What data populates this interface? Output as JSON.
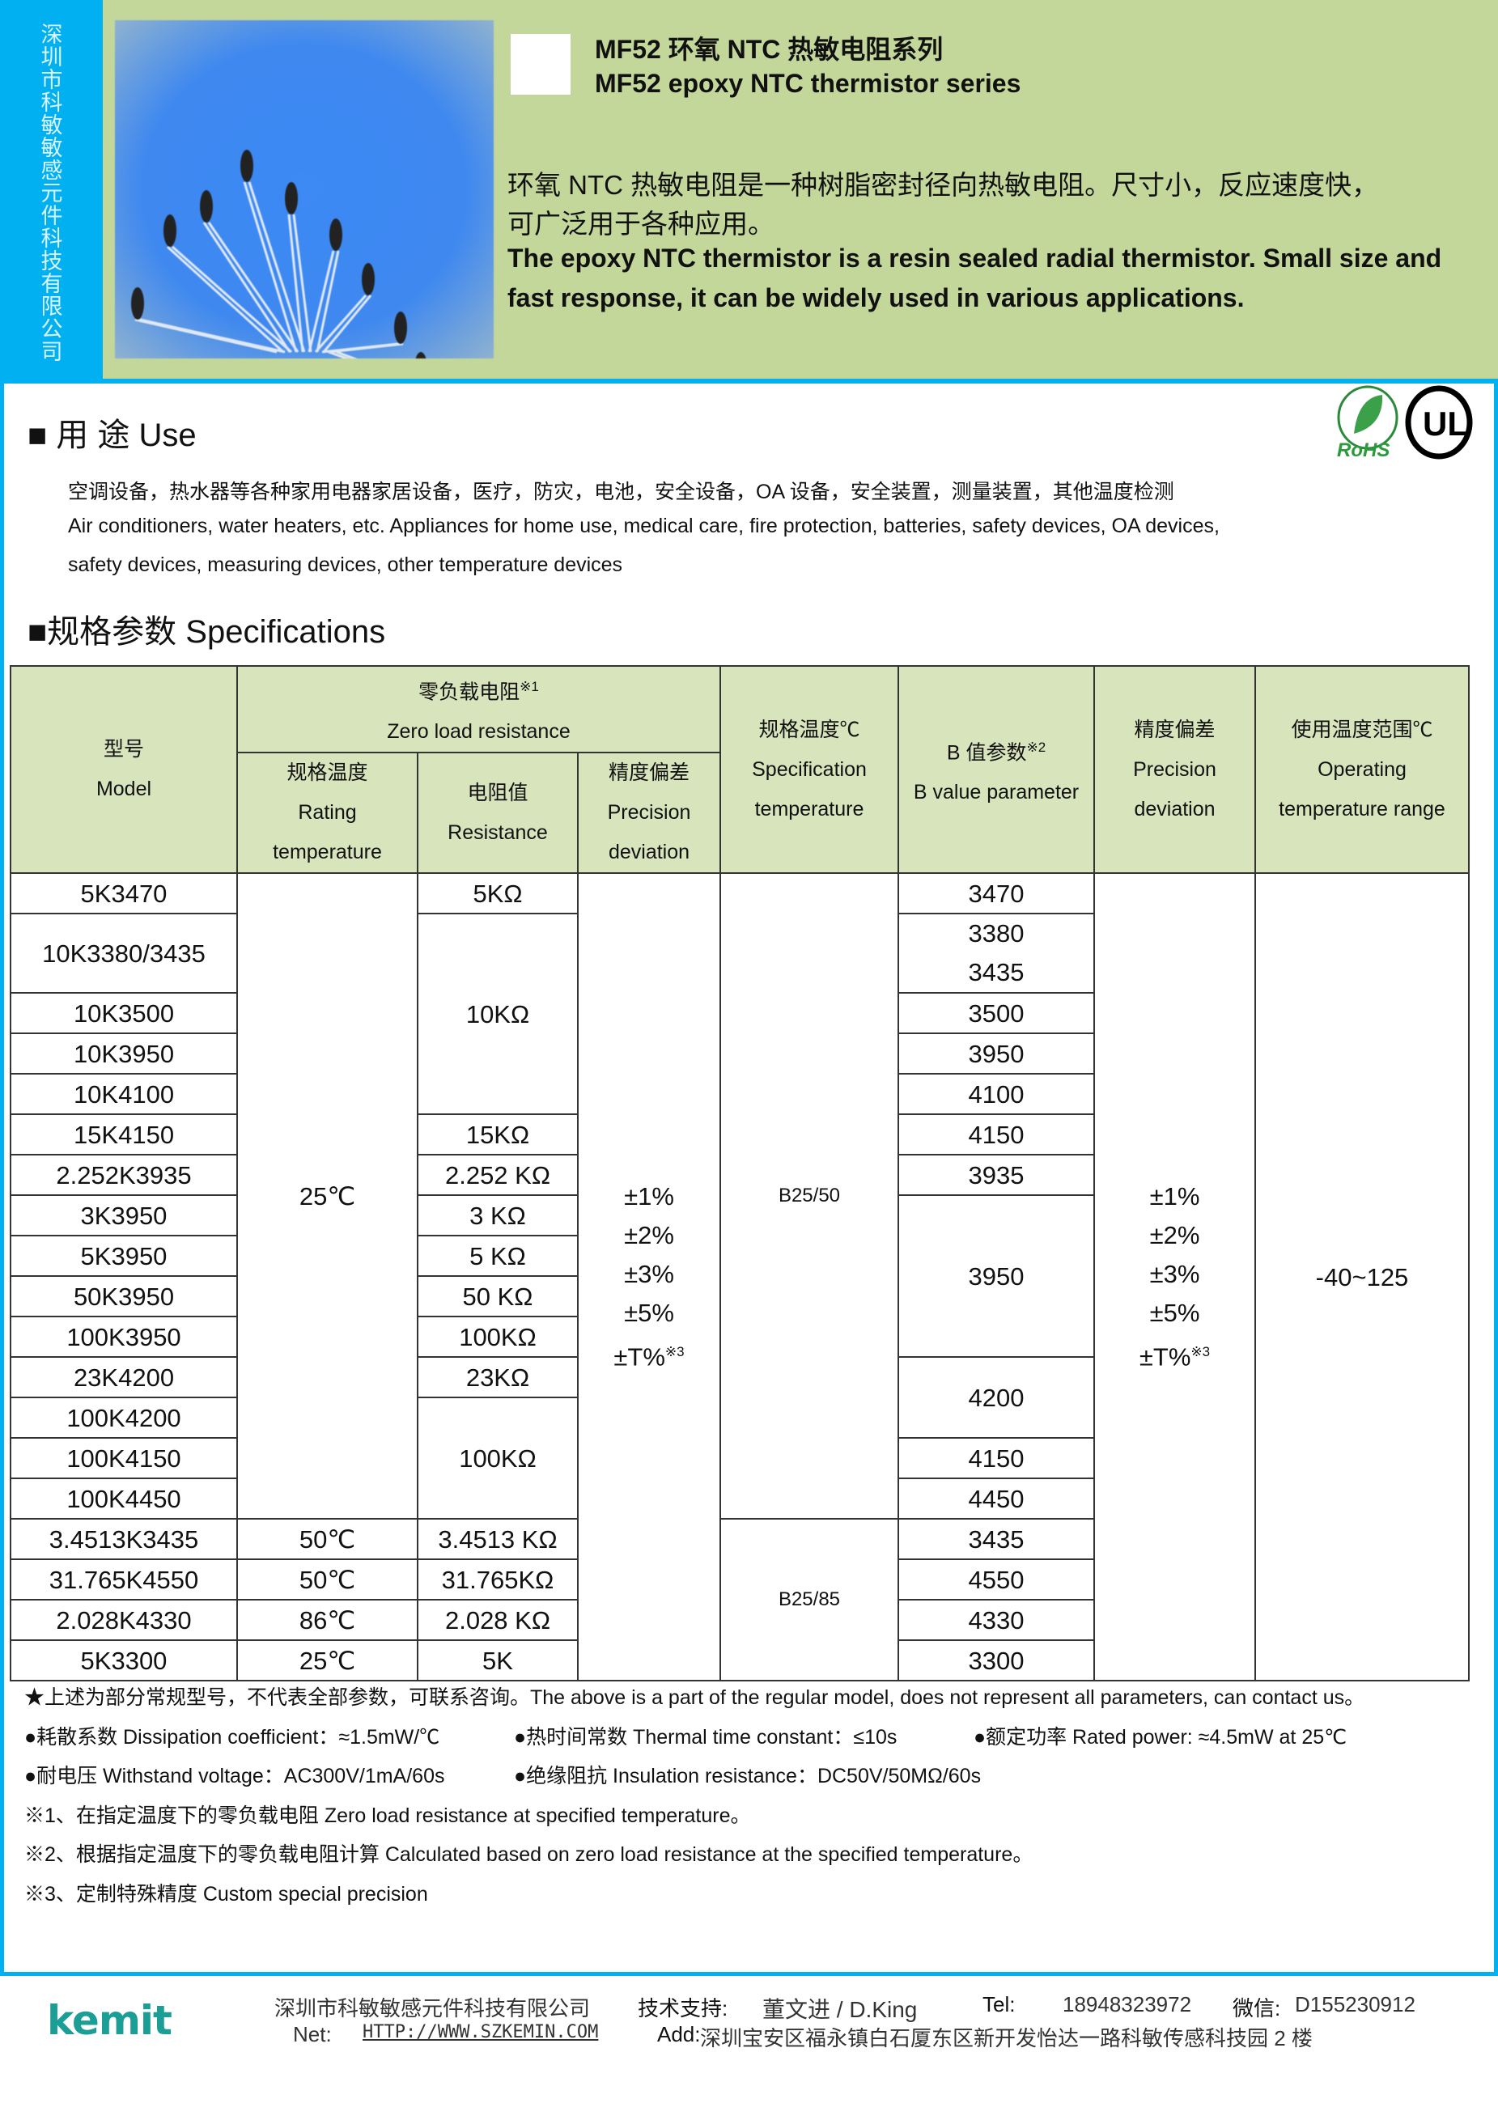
{
  "header": {
    "company_vertical": "深圳市科敏敏感元件科技有限公司",
    "title_cn": "MF52 环氧 NTC 热敏电阻系列",
    "title_en": "MF52 epoxy NTC thermistor series",
    "desc_cn_1": "环氧 NTC 热敏电阻是一种树脂密封径向热敏电阻。尺寸小，反应速度快，",
    "desc_cn_2": "可广泛用于各种应用。",
    "desc_en_1": "The epoxy NTC thermistor is a resin sealed radial thermistor. Small size and",
    "desc_en_2": "fast response, it can be widely used in various applications."
  },
  "use": {
    "heading": "■ 用  途 Use",
    "cn": "空调设备，热水器等各种家用电器家居设备，医疗，防灾，电池，安全设备，OA 设备，安全装置，测量装置，其他温度检测",
    "en_1": "Air conditioners, water heaters, etc. Appliances for home use, medical care, fire protection, batteries, safety devices, OA devices,",
    "en_2": "safety devices, measuring devices, other temperature devices",
    "logos": {
      "rohs": "RoHS",
      "ul": "UL"
    }
  },
  "specs": {
    "heading": "■规格参数 Specifications",
    "headers": {
      "model_cn": "型号",
      "model_en": "Model",
      "zero_cn": "零负载电阻",
      "zero_sup": "※1",
      "zero_en": "Zero load resistance",
      "rating_cn": "规格温度",
      "rating_en1": "Rating",
      "rating_en2": "temperature",
      "res_cn": "电阻值",
      "res_en": "Resistance",
      "prec_cn": "精度偏差",
      "prec_en1": "Precision",
      "prec_en2": "deviation",
      "spec_cn": "规格温度℃",
      "spec_en1": "Specification",
      "spec_en2": "temperature",
      "b_cn": "B 值参数",
      "b_sup": "※2",
      "b_en": "B value parameter",
      "prec2_cn": "精度偏差",
      "prec2_en1": "Precision",
      "prec2_en2": "deviation",
      "op_cn": "使用温度范围℃",
      "op_en1": "Operating",
      "op_en2": "temperature range"
    },
    "columns": {
      "model": [
        "5K3470",
        "10K3380/3435",
        "10K3500",
        "10K3950",
        "10K4100",
        "15K4150",
        "2.252K3935",
        "3K3950",
        "5K3950",
        "50K3950",
        "100K3950",
        "23K4200",
        "100K4200",
        "100K4150",
        "100K4450",
        "3.4513K3435",
        "31.765K4550",
        "2.028K4330",
        "5K3300"
      ],
      "rating_temperature": [
        "25℃",
        "50℃",
        "50℃",
        "86℃",
        "25℃"
      ],
      "resistance": [
        "5KΩ",
        "10KΩ",
        "15KΩ",
        "2.252 KΩ",
        "3 KΩ",
        "5 KΩ",
        "50 KΩ",
        "100KΩ",
        "23KΩ",
        "100KΩ",
        "3.4513 KΩ",
        "31.765KΩ",
        "2.028 KΩ",
        "5K"
      ],
      "precision": [
        [
          "±1%",
          "±2%",
          "±3%",
          "±5%",
          "±T%※3"
        ]
      ],
      "spec_temperature": [
        "B25/50",
        "B25/85"
      ],
      "b_value": [
        [
          "3470"
        ],
        [
          "3380",
          "3435"
        ],
        [
          "3500"
        ],
        [
          "3950"
        ],
        [
          "4100"
        ],
        [
          "4150"
        ],
        [
          "3935"
        ],
        [
          "3950"
        ],
        [
          "4200"
        ],
        [
          "4150"
        ],
        [
          "4450"
        ],
        [
          "3435"
        ],
        [
          "4550"
        ],
        [
          "4330"
        ],
        [
          "3300"
        ]
      ],
      "precision2": [
        [
          "±1%",
          "±2%",
          "±3%",
          "±5%",
          "±T%※3"
        ]
      ],
      "operating_range": [
        "-40~125"
      ]
    }
  },
  "notes": {
    "star": "★上述为部分常规型号，不代表全部参数，可联系咨询。The above is a part of the regular model, does not represent all parameters, can contact us。",
    "dissipation": "●耗散系数 Dissipation coefficient：≈1.5mW/℃",
    "thermal": "●热时间常数 Thermal time constant：≤10s",
    "power": "●额定功率 Rated power: ≈4.5mW at 25℃",
    "withstand": "●耐电压 Withstand voltage：AC300V/1mA/60s",
    "insulation": "●绝缘阻抗 Insulation resistance：DC50V/50MΩ/60s",
    "n1": "※1、在指定温度下的零负载电阻  Zero load resistance at specified temperature。",
    "n2": "※2、根据指定温度下的零负载电阻计算   Calculated based on zero load resistance at the specified temperature。",
    "n3": "※3、定制特殊精度 Custom special precision"
  },
  "footer": {
    "logo": "kemit",
    "company": "深圳市科敏敏感元件科技有限公司",
    "support_label": "技术支持:",
    "support_name": "董文进 / D.King",
    "tel_label": "Tel:",
    "tel": "18948323972",
    "wechat_label": "微信:",
    "wechat": "D155230912",
    "net_label": "Net:",
    "net": "HTTP://WWW.SZKEMIN.COM",
    "add_label": "Add:",
    "address": "深圳宝安区福永镇白石厦东区新开发怡达一路科敏传感科技园 2 楼"
  },
  "colors": {
    "accent_blue": "#00b0f0",
    "header_green": "#c4d79b",
    "table_header": "#d8e4bc",
    "logo_teal": "#1a9e96",
    "link_blue": "#1f1fd0"
  }
}
